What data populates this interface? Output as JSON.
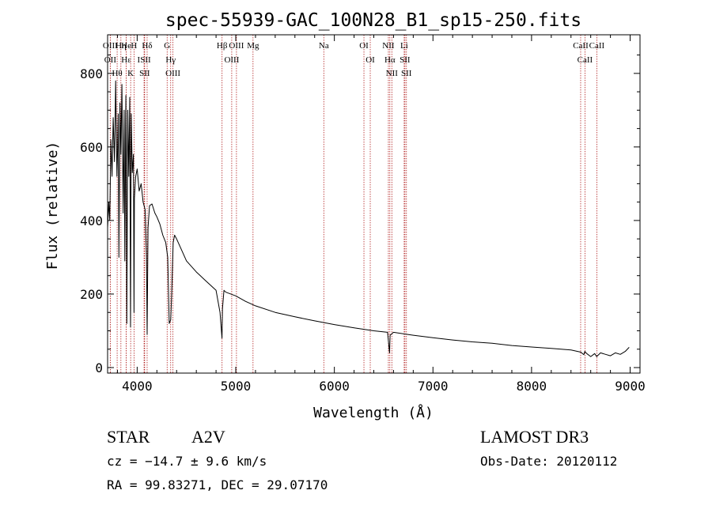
{
  "chart_data": {
    "type": "line",
    "title": "spec-55939-GAC_100N28_B1_sp15-250.fits",
    "xlabel": "Wavelength (Å)",
    "ylabel": "Flux (relative)",
    "xlim": [
      3700,
      9100
    ],
    "ylim": [
      -15,
      905
    ],
    "x_ticks": [
      4000,
      5000,
      6000,
      7000,
      8000,
      9000
    ],
    "y_ticks": [
      0,
      200,
      400,
      600,
      800
    ],
    "grid": false,
    "series": [
      {
        "name": "flux",
        "x": [
          3700,
          3712,
          3722,
          3734,
          3745,
          3757,
          3770,
          3782,
          3795,
          3800,
          3808,
          3815,
          3825,
          3835,
          3845,
          3858,
          3868,
          3875,
          3885,
          3889,
          3895,
          3905,
          3915,
          3925,
          3933,
          3940,
          3950,
          3962,
          3968,
          3972,
          3985,
          4000,
          4020,
          4040,
          4060,
          4080,
          4095,
          4101,
          4110,
          4125,
          4150,
          4180,
          4200,
          4230,
          4260,
          4290,
          4310,
          4325,
          4340,
          4350,
          4365,
          4380,
          4400,
          4450,
          4500,
          4600,
          4700,
          4800,
          4840,
          4860,
          4865,
          4880,
          4900,
          5000,
          5100,
          5200,
          5400,
          5600,
          5800,
          6000,
          6200,
          6400,
          6540,
          6560,
          6565,
          6600,
          6800,
          7000,
          7200,
          7400,
          7600,
          7800,
          8000,
          8200,
          8400,
          8500,
          8530,
          8540,
          8560,
          8600,
          8640,
          8660,
          8700,
          8750,
          8800,
          8850,
          8900,
          8950,
          8990
        ],
        "y": [
          380,
          450,
          400,
          620,
          520,
          680,
          560,
          780,
          520,
          580,
          690,
          300,
          720,
          580,
          770,
          420,
          700,
          290,
          740,
          600,
          120,
          700,
          520,
          735,
          110,
          690,
          530,
          580,
          150,
          460,
          520,
          540,
          480,
          500,
          450,
          430,
          300,
          90,
          380,
          440,
          445,
          420,
          410,
          390,
          360,
          340,
          300,
          120,
          130,
          200,
          340,
          360,
          350,
          320,
          290,
          260,
          235,
          210,
          150,
          80,
          160,
          210,
          205,
          195,
          180,
          168,
          150,
          138,
          127,
          117,
          108,
          100,
          96,
          40,
          88,
          96,
          88,
          81,
          75,
          70,
          66,
          60,
          56,
          52,
          48,
          42,
          35,
          44,
          38,
          30,
          38,
          30,
          40,
          36,
          32,
          40,
          36,
          44,
          55
        ]
      }
    ],
    "lines": [
      {
        "name": "OIII",
        "x": 3727
      },
      {
        "name": "OII",
        "x": 3727
      },
      {
        "name": "Hθ",
        "x": 3797
      },
      {
        "name": "Hε",
        "x": 3889
      },
      {
        "name": "He",
        "x": 3889
      },
      {
        "name": "Hη",
        "x": 3835
      },
      {
        "name": "K",
        "x": 3934
      },
      {
        "name": "H",
        "x": 3968
      },
      {
        "name": "ISII",
        "x": 4070
      },
      {
        "name": "Hδ",
        "x": 4101
      },
      {
        "name": "SII",
        "x": 4076
      },
      {
        "name": "OIII",
        "x": 4363
      },
      {
        "name": "Hγ",
        "x": 4340
      },
      {
        "name": "G",
        "x": 4304
      },
      {
        "name": "Hβ",
        "x": 4861
      },
      {
        "name": "OIII",
        "x": 4959
      },
      {
        "name": "OIII",
        "x": 5007
      },
      {
        "name": "Mg",
        "x": 5175
      },
      {
        "name": "Na",
        "x": 5893
      },
      {
        "name": "OI",
        "x": 6300
      },
      {
        "name": "OI",
        "x": 6364
      },
      {
        "name": "Hα",
        "x": 6563
      },
      {
        "name": "NII",
        "x": 6548
      },
      {
        "name": "NII",
        "x": 6583
      },
      {
        "name": "SII",
        "x": 6716
      },
      {
        "name": "SII",
        "x": 6731
      },
      {
        "name": "Li",
        "x": 6708
      },
      {
        "name": "CaII",
        "x": 8498
      },
      {
        "name": "CaII",
        "x": 8542
      },
      {
        "name": "CaII",
        "x": 8662
      }
    ]
  },
  "labels": {
    "object_type": "STAR",
    "subclass": "A2V",
    "survey": "LAMOST DR3",
    "cz": "cz = −14.7 ± 9.6 km/s",
    "obs_date": "Obs-Date: 20120112",
    "coords": "RA =  99.83271, DEC =  29.07170"
  },
  "colors": {
    "line_marker": "#b22222",
    "spectrum": "#000000",
    "axes": "#000000"
  }
}
